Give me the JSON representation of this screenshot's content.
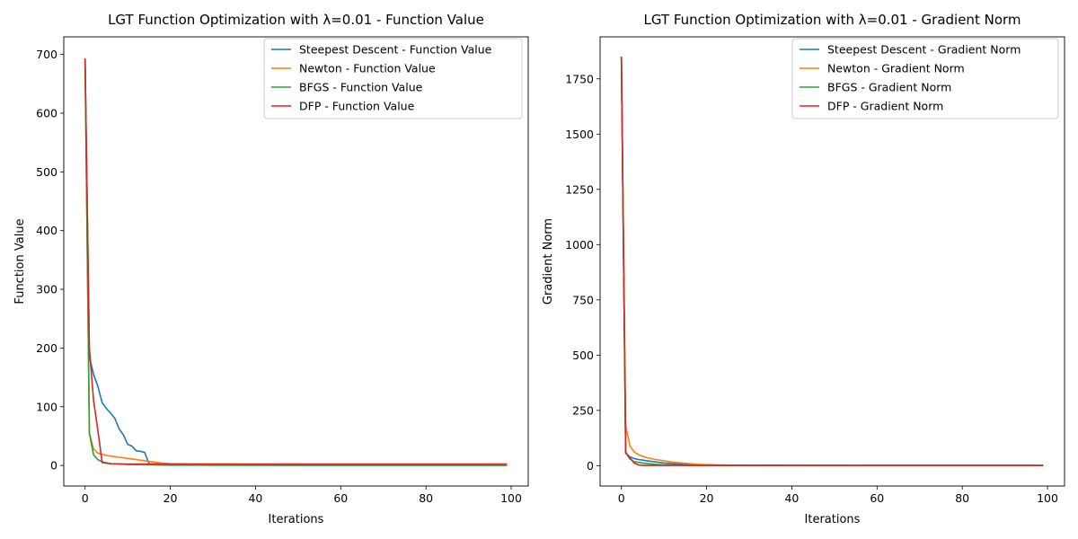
{
  "chart_data": [
    {
      "type": "line",
      "title": "LGT Function Optimization with λ=0.01 - Function Value",
      "xlabel": "Iterations",
      "ylabel": "Function Value",
      "xlim": [
        -5,
        104
      ],
      "ylim": [
        -35,
        730
      ],
      "xticks": [
        0,
        20,
        40,
        60,
        80,
        100
      ],
      "yticks": [
        0,
        100,
        200,
        300,
        400,
        500,
        600,
        700
      ],
      "legend_position": "top-right",
      "series": [
        {
          "name": "Steepest Descent - Function Value",
          "color": "#1f77b4",
          "x": [
            0,
            1,
            2,
            3,
            4,
            5,
            6,
            7,
            8,
            9,
            10,
            11,
            12,
            13,
            14,
            15,
            20,
            30,
            50,
            99
          ],
          "y": [
            693,
            185,
            155,
            135,
            107,
            97,
            89,
            80,
            62,
            52,
            36,
            33,
            25,
            24,
            22,
            3,
            1,
            0.5,
            0.3,
            0.2
          ]
        },
        {
          "name": "Newton - Function Value",
          "color": "#ff7f0e",
          "x": [
            0,
            1,
            2,
            3,
            4,
            5,
            6,
            8,
            10,
            12,
            14,
            16,
            18,
            20,
            25,
            40,
            60,
            99
          ],
          "y": [
            690,
            55,
            28,
            21,
            19,
            17,
            16,
            14,
            12,
            10,
            8,
            6,
            4,
            3,
            2.5,
            2,
            2,
            2
          ]
        },
        {
          "name": "BFGS - Function Value",
          "color": "#2ca02c",
          "x": [
            0,
            1,
            2,
            3,
            4,
            6,
            10,
            20,
            99
          ],
          "y": [
            693,
            55,
            18,
            10,
            6,
            3,
            1.5,
            0.5,
            0.2
          ]
        },
        {
          "name": "DFP - Function Value",
          "color": "#d62728",
          "x": [
            0,
            1,
            2,
            3,
            4,
            6,
            10,
            20,
            40,
            99
          ],
          "y": [
            693,
            200,
            110,
            60,
            5,
            3,
            2.5,
            2.5,
            2.5,
            2.5
          ]
        }
      ]
    },
    {
      "type": "line",
      "title": "LGT Function Optimization with λ=0.01 - Gradient Norm",
      "xlabel": "Iterations",
      "ylabel": "Gradient Norm",
      "xlim": [
        -5,
        104
      ],
      "ylim": [
        -92,
        1940
      ],
      "xticks": [
        0,
        20,
        40,
        60,
        80,
        100
      ],
      "yticks": [
        0,
        250,
        500,
        750,
        1000,
        1250,
        1500,
        1750
      ],
      "legend_position": "top-right",
      "series": [
        {
          "name": "Steepest Descent - Gradient Norm",
          "color": "#1f77b4",
          "x": [
            0,
            1,
            2,
            3,
            4,
            5,
            6,
            8,
            10,
            15,
            20,
            30,
            99
          ],
          "y": [
            1850,
            55,
            40,
            32,
            28,
            25,
            22,
            17,
            12,
            6,
            3,
            1,
            0.5
          ]
        },
        {
          "name": "Newton - Gradient Norm",
          "color": "#ff7f0e",
          "x": [
            0,
            1,
            2,
            3,
            4,
            5,
            6,
            8,
            10,
            12,
            15,
            18,
            22,
            30,
            50,
            99
          ],
          "y": [
            1850,
            180,
            90,
            62,
            50,
            42,
            36,
            28,
            22,
            16,
            11,
            6,
            3,
            2,
            1,
            1
          ]
        },
        {
          "name": "BFGS - Gradient Norm",
          "color": "#2ca02c",
          "x": [
            0,
            1,
            2,
            3,
            4,
            5,
            6,
            8,
            10,
            15,
            20,
            99
          ],
          "y": [
            1850,
            60,
            30,
            18,
            15,
            12,
            10,
            6,
            4,
            2,
            1,
            0.5
          ]
        },
        {
          "name": "DFP - Gradient Norm",
          "color": "#d62728",
          "x": [
            0,
            1,
            2,
            3,
            4,
            5,
            6,
            10,
            20,
            99
          ],
          "y": [
            1850,
            60,
            35,
            12,
            3,
            1,
            1,
            1,
            1,
            1
          ]
        }
      ]
    }
  ]
}
